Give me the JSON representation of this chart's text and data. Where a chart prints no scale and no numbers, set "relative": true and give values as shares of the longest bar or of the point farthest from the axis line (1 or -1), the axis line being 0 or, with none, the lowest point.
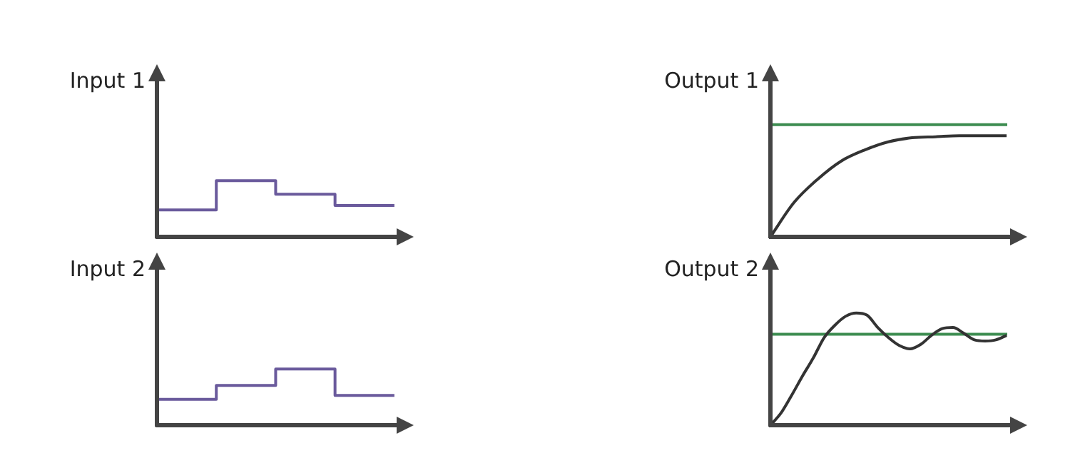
{
  "chart_data": [
    {
      "type": "step",
      "ylabel": "Input 1",
      "relative": true,
      "categories": [
        null,
        null,
        null,
        null,
        null
      ],
      "series": [
        {
          "color": "#6a5a9c",
          "values": [
            0.48,
            1,
            0.76,
            0.56,
            0.56
          ]
        }
      ]
    },
    {
      "type": "line",
      "ylabel": "Output 1",
      "relative": true,
      "categories": [
        null,
        null,
        null,
        null,
        null,
        null,
        null,
        null,
        null,
        null,
        null
      ],
      "series": [
        {
          "color": "#333333",
          "values": [
            0,
            0.34,
            0.57,
            0.75,
            0.86,
            0.94,
            0.98,
            0.99,
            1,
            1,
            1
          ]
        }
      ],
      "ref_lines": [
        {
          "axis": "y",
          "value": 1.11,
          "color": "#3c8c50"
        }
      ]
    },
    {
      "type": "step",
      "ylabel": "Input 2",
      "relative": true,
      "categories": [
        null,
        null,
        null,
        null,
        null
      ],
      "series": [
        {
          "color": "#6a5a9c",
          "values": [
            0.46,
            0.71,
            1,
            0.53,
            0.53
          ]
        }
      ]
    },
    {
      "type": "line",
      "ylabel": "Output 2",
      "relative": true,
      "categories": [
        null,
        null,
        null,
        null,
        null,
        null,
        null,
        null,
        null,
        null,
        null,
        null,
        null,
        null,
        null,
        null,
        null,
        null,
        null,
        null,
        null,
        null,
        null
      ],
      "series": [
        {
          "color": "#333333",
          "values": [
            0,
            0.11,
            0.27,
            0.44,
            0.6,
            0.78,
            0.89,
            0.97,
            1,
            0.98,
            0.87,
            0.78,
            0.71,
            0.68,
            0.72,
            0.8,
            0.86,
            0.87,
            0.82,
            0.76,
            0.75,
            0.76,
            0.8
          ]
        }
      ],
      "ref_lines": [
        {
          "axis": "y",
          "value": 0.81,
          "color": "#3c8c50"
        }
      ]
    }
  ]
}
